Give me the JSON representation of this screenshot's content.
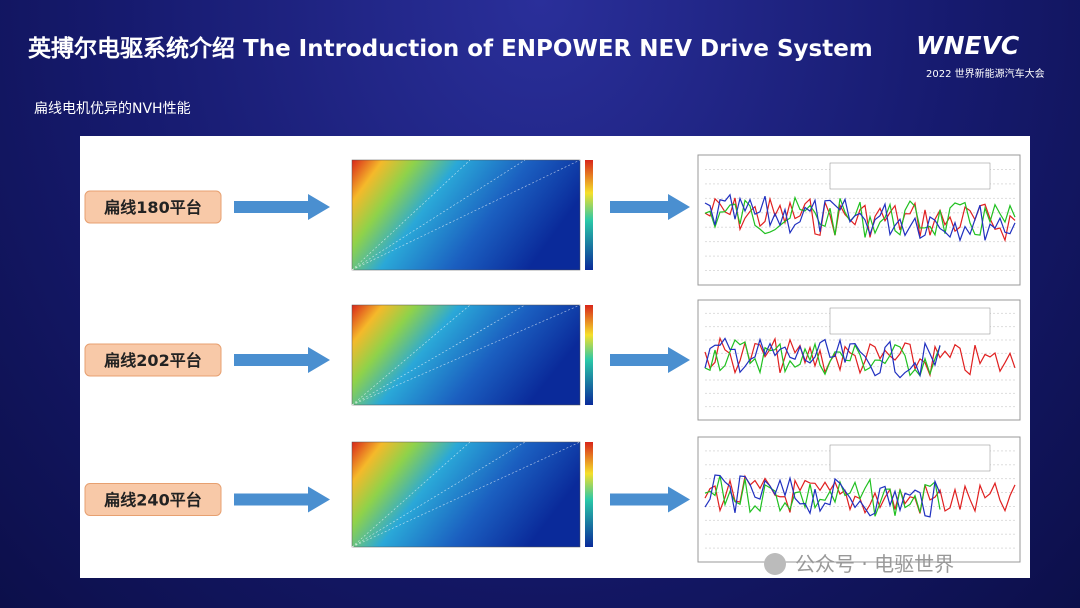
{
  "header": {
    "title": "英搏尔电驱系统介绍 The Introduction of ENPOWER NEV Drive System",
    "subtitle": "扁线电机优异的NVH性能"
  },
  "logo": {
    "name": "WNEVC",
    "event": "2022 世界新能源汽车大会"
  },
  "rows": [
    {
      "label": "扁线180平台"
    },
    {
      "label": "扁线202平台"
    },
    {
      "label": "扁线240平台"
    }
  ],
  "watermark": "公众号 · 电驱世界"
}
